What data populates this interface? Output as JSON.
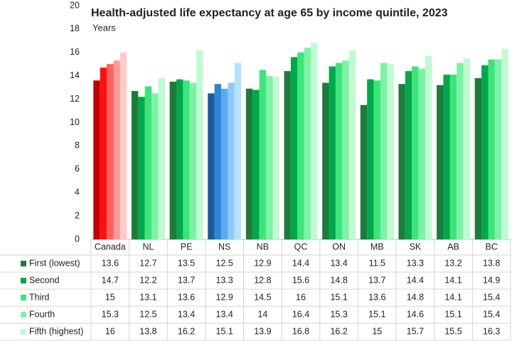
{
  "chart_data": {
    "type": "bar",
    "title": "Health-adjusted life expectancy at age 65 by income quintile, 2023",
    "subtitle": "Years",
    "categories": [
      "Canada",
      "NL",
      "PE",
      "NS",
      "NB",
      "QC",
      "ON",
      "MB",
      "SK",
      "AB",
      "BC"
    ],
    "series": [
      {
        "name": "First (lowest)",
        "color": "#1e7b3c",
        "values": [
          13.6,
          12.7,
          13.5,
          12.5,
          12.9,
          14.4,
          13.4,
          11.5,
          13.3,
          13.2,
          13.8
        ]
      },
      {
        "name": "Second",
        "color": "#00a84a",
        "values": [
          14.7,
          12.2,
          13.7,
          13.3,
          12.8,
          15.6,
          14.8,
          13.7,
          14.4,
          14.1,
          14.9
        ]
      },
      {
        "name": "Third",
        "color": "#3ce57c",
        "values": [
          15,
          13.1,
          13.6,
          12.9,
          14.5,
          16,
          15.1,
          13.6,
          14.8,
          14.1,
          15.4
        ]
      },
      {
        "name": "Fourth",
        "color": "#7df2a6",
        "values": [
          15.3,
          12.5,
          13.4,
          13.4,
          14,
          16.4,
          15.3,
          15.1,
          14.6,
          15.1,
          15.4
        ]
      },
      {
        "name": "Fifth (highest)",
        "color": "#c0fad2",
        "values": [
          16,
          13.8,
          16.2,
          15.1,
          13.9,
          16.8,
          16.2,
          15,
          15.7,
          15.5,
          16.3
        ]
      }
    ],
    "highlights": [
      {
        "category": "Canada",
        "colors": [
          "#c00000",
          "#ff1010",
          "#ff6060",
          "#ff9a9a",
          "#ffcaca"
        ]
      },
      {
        "category": "NS",
        "colors": [
          "#1d5c9c",
          "#2f86d6",
          "#5aabef",
          "#8ecaf8",
          "#b9e1ff"
        ]
      }
    ],
    "ylim": [
      0,
      20
    ],
    "yticks": [
      0,
      2,
      4,
      6,
      8,
      10,
      12,
      14,
      16,
      18,
      20
    ],
    "grid": false
  }
}
